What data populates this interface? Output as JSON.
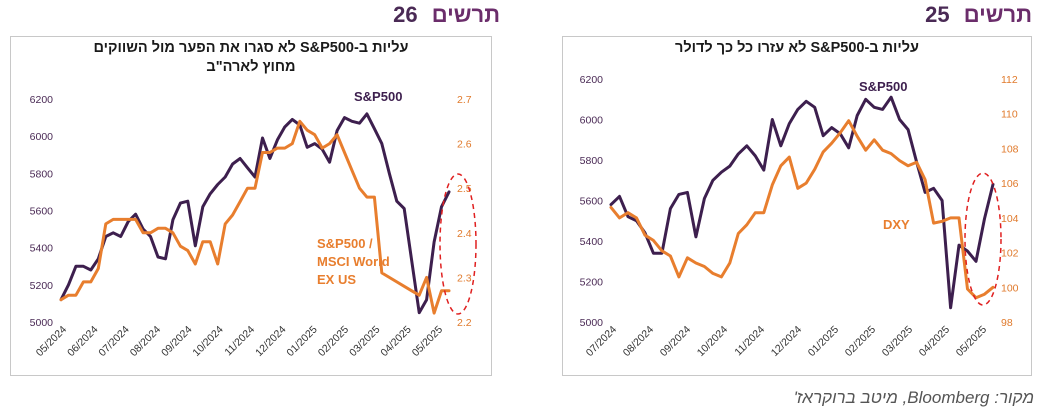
{
  "charts": [
    {
      "chart_number": "26",
      "chart_word": "תרשים",
      "title_line1": "עליות ב-S&P500 לא סגרו את הפער מול השווקים",
      "title_line2": "מחוץ לארה\"ב",
      "left_ticks": [
        "6200",
        "6000",
        "5800",
        "5600",
        "5400",
        "5200",
        "5000"
      ],
      "right_ticks": [
        "2.7",
        "2.6",
        "2.5",
        "2.4",
        "2.3",
        "2.2"
      ],
      "x_ticks": [
        "05/2024",
        "06/2024",
        "07/2024",
        "08/2024",
        "09/2024",
        "10/2024",
        "11/2024",
        "12/2024",
        "01/2025",
        "02/2025",
        "03/2025",
        "04/2025",
        "05/2025"
      ],
      "series_label_1": "S&P500",
      "series_label_2_lines": [
        "S&P500 /",
        "MSCI World",
        "EX US"
      ]
    },
    {
      "chart_number": "25",
      "chart_word": "תרשים",
      "title_line1": "עליות ב-S&P500 לא עזרו כל כך לדולר",
      "left_ticks": [
        "6200",
        "6000",
        "5800",
        "5600",
        "5400",
        "5200",
        "5000"
      ],
      "right_ticks": [
        "112",
        "110",
        "108",
        "106",
        "104",
        "102",
        "100",
        "98"
      ],
      "x_ticks": [
        "07/2024",
        "08/2024",
        "09/2024",
        "10/2024",
        "11/2024",
        "12/2024",
        "01/2025",
        "02/2025",
        "03/2025",
        "04/2025",
        "05/2025"
      ],
      "series_label_1": "S&P500",
      "series_label_2": "DXY"
    }
  ],
  "source": "מקור: Bloomberg, מיטב ברוקראז'",
  "colors": {
    "sp500": "#3d1f4e",
    "secondary": "#e87e2e",
    "ellipse": "#e02020"
  },
  "chart_data": [
    {
      "type": "line",
      "title": "עליות ב-S&P500 לא סגרו את הפער מול השווקים מחוץ לארה\"ב",
      "x_range": [
        "05/2024",
        "05/2025"
      ],
      "ylim_left": [
        5000,
        6200
      ],
      "ylim_right": [
        2.2,
        2.7
      ],
      "grid": false,
      "series": [
        {
          "name": "S&P500",
          "axis": "left",
          "values": [
            5120,
            5200,
            5300,
            5300,
            5280,
            5340,
            5460,
            5480,
            5460,
            5540,
            5580,
            5500,
            5460,
            5350,
            5340,
            5550,
            5640,
            5650,
            5410,
            5620,
            5690,
            5740,
            5780,
            5850,
            5880,
            5830,
            5780,
            5990,
            5880,
            5980,
            6050,
            6090,
            6060,
            5940,
            5960,
            5930,
            5860,
            6030,
            6100,
            6080,
            6070,
            6120,
            6040,
            5960,
            5800,
            5650,
            5610,
            5330,
            5050,
            5120,
            5430,
            5620,
            5700
          ]
        },
        {
          "name": "S&P500 / MSCI World EX US",
          "axis": "right",
          "values": [
            2.25,
            2.26,
            2.26,
            2.29,
            2.29,
            2.32,
            2.42,
            2.43,
            2.43,
            2.43,
            2.43,
            2.4,
            2.4,
            2.41,
            2.41,
            2.4,
            2.37,
            2.36,
            2.33,
            2.38,
            2.38,
            2.33,
            2.42,
            2.44,
            2.47,
            2.5,
            2.5,
            2.58,
            2.58,
            2.59,
            2.59,
            2.6,
            2.65,
            2.63,
            2.62,
            2.59,
            2.6,
            2.62,
            2.58,
            2.54,
            2.5,
            2.48,
            2.48,
            2.31,
            2.3,
            2.29,
            2.28,
            2.27,
            2.26,
            2.3,
            2.22,
            2.27,
            2.27
          ]
        }
      ],
      "annotations": [
        "S&P500",
        "S&P500 / MSCI World EX US"
      ]
    },
    {
      "type": "line",
      "title": "עליות ב-S&P500 לא עזרו כל כך לדולר",
      "x_range": [
        "07/2024",
        "05/2025"
      ],
      "ylim_left": [
        5000,
        6200
      ],
      "ylim_right": [
        98,
        112
      ],
      "grid": false,
      "series": [
        {
          "name": "S&P500",
          "axis": "left",
          "values": [
            5580,
            5620,
            5520,
            5500,
            5440,
            5340,
            5340,
            5560,
            5630,
            5640,
            5420,
            5610,
            5700,
            5740,
            5770,
            5830,
            5870,
            5820,
            5750,
            6000,
            5870,
            5980,
            6050,
            6090,
            6060,
            5920,
            5960,
            5930,
            5860,
            6020,
            6100,
            6060,
            6050,
            6110,
            6000,
            5950,
            5790,
            5640,
            5660,
            5600,
            5070,
            5380,
            5350,
            5300,
            5510,
            5680
          ]
        },
        {
          "name": "DXY",
          "axis": "right",
          "values": [
            104.6,
            104.0,
            104.3,
            104.0,
            103.0,
            102.7,
            102.1,
            101.8,
            100.6,
            101.7,
            101.4,
            101.2,
            100.8,
            100.6,
            101.4,
            103.1,
            103.6,
            104.3,
            104.3,
            105.9,
            107.0,
            107.5,
            105.7,
            106.0,
            106.8,
            107.8,
            108.3,
            108.9,
            109.6,
            108.7,
            107.9,
            108.5,
            107.9,
            107.7,
            107.3,
            107.0,
            107.2,
            106.2,
            103.7,
            103.8,
            104.0,
            104.0,
            99.9,
            99.4,
            99.6,
            100.0
          ]
        }
      ],
      "annotations": [
        "S&P500",
        "DXY"
      ]
    }
  ]
}
